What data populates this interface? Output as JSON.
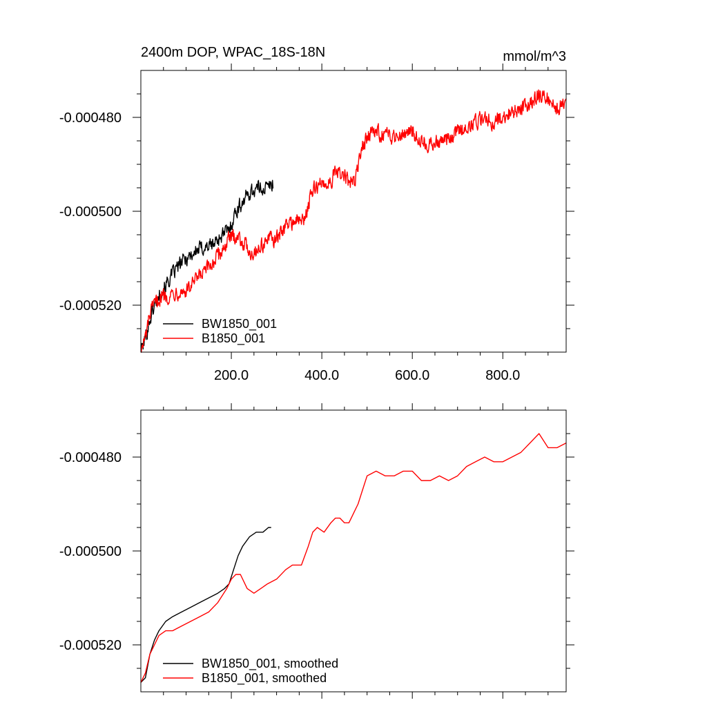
{
  "chart_data": [
    {
      "type": "line",
      "title": "2400m DOP, WPAC_18S-18N",
      "units": "mmol/m^3",
      "xlim": [
        0,
        940
      ],
      "ylim": [
        -0.00053,
        -0.00047
      ],
      "x_ticks": [
        {
          "value": 200,
          "label": "200.0"
        },
        {
          "value": 400,
          "label": "400.0"
        },
        {
          "value": 600,
          "label": "600.0"
        },
        {
          "value": 800,
          "label": "800.0"
        }
      ],
      "y_ticks": [
        {
          "value": -0.00048,
          "label": "-0.000480"
        },
        {
          "value": -0.0005,
          "label": "-0.000500"
        },
        {
          "value": -0.00052,
          "label": "-0.000520"
        }
      ],
      "legend_position": "bottom-left",
      "series": [
        {
          "name": "BW1850_001",
          "color": "#000000",
          "noise": 2.3e-06,
          "points": [
            [
              0,
              -0.00053
            ],
            [
              10,
              -0.000527
            ],
            [
              20,
              -0.000523
            ],
            [
              30,
              -0.00052
            ],
            [
              45,
              -0.000517
            ],
            [
              60,
              -0.000515
            ],
            [
              80,
              -0.000512
            ],
            [
              100,
              -0.00051
            ],
            [
              130,
              -0.000508
            ],
            [
              160,
              -0.000507
            ],
            [
              180,
              -0.000505
            ],
            [
              195,
              -0.000504
            ],
            [
              210,
              -0.0005
            ],
            [
              225,
              -0.000498
            ],
            [
              240,
              -0.000496
            ],
            [
              260,
              -0.000495
            ],
            [
              280,
              -0.000495
            ],
            [
              292,
              -0.000494
            ]
          ]
        },
        {
          "name": "B1850_001",
          "color": "#ff0000",
          "noise": 2.3e-06,
          "points": [
            [
              0,
              -0.00053
            ],
            [
              10,
              -0.000527
            ],
            [
              20,
              -0.000522
            ],
            [
              30,
              -0.00052
            ],
            [
              45,
              -0.000518
            ],
            [
              60,
              -0.000518
            ],
            [
              80,
              -0.000517
            ],
            [
              100,
              -0.000517
            ],
            [
              120,
              -0.000515
            ],
            [
              150,
              -0.000512
            ],
            [
              175,
              -0.000509
            ],
            [
              195,
              -0.000506
            ],
            [
              210,
              -0.000505
            ],
            [
              230,
              -0.000507
            ],
            [
              245,
              -0.000509
            ],
            [
              260,
              -0.000508
            ],
            [
              280,
              -0.000506
            ],
            [
              300,
              -0.000506
            ],
            [
              320,
              -0.000503
            ],
            [
              340,
              -0.000502
            ],
            [
              360,
              -0.000502
            ],
            [
              375,
              -0.000497
            ],
            [
              385,
              -0.000495
            ],
            [
              400,
              -0.000494
            ],
            [
              415,
              -0.000494
            ],
            [
              430,
              -0.000492
            ],
            [
              445,
              -0.000492
            ],
            [
              460,
              -0.000494
            ],
            [
              475,
              -0.000493
            ],
            [
              490,
              -0.000486
            ],
            [
              500,
              -0.000484
            ],
            [
              520,
              -0.000483
            ],
            [
              540,
              -0.000484
            ],
            [
              560,
              -0.000484
            ],
            [
              580,
              -0.000483
            ],
            [
              600,
              -0.000483
            ],
            [
              620,
              -0.000485
            ],
            [
              640,
              -0.000486
            ],
            [
              660,
              -0.000485
            ],
            [
              680,
              -0.000485
            ],
            [
              700,
              -0.000483
            ],
            [
              720,
              -0.000482
            ],
            [
              740,
              -0.000481
            ],
            [
              760,
              -0.00048
            ],
            [
              780,
              -0.000481
            ],
            [
              800,
              -0.00048
            ],
            [
              820,
              -0.000479
            ],
            [
              840,
              -0.000478
            ],
            [
              860,
              -0.000477
            ],
            [
              880,
              -0.000475
            ],
            [
              900,
              -0.000476
            ],
            [
              920,
              -0.000478
            ],
            [
              940,
              -0.000477
            ]
          ]
        }
      ]
    },
    {
      "type": "line",
      "xlim": [
        0,
        940
      ],
      "ylim": [
        -0.00053,
        -0.00047
      ],
      "x_ticks": [
        {
          "value": 200
        },
        {
          "value": 400
        },
        {
          "value": 600
        },
        {
          "value": 800
        }
      ],
      "y_ticks": [
        {
          "value": -0.00048,
          "label": "-0.000480"
        },
        {
          "value": -0.0005,
          "label": "-0.000500"
        },
        {
          "value": -0.00052,
          "label": "-0.000520"
        }
      ],
      "legend_position": "bottom-left",
      "series": [
        {
          "name": "BW1850_001, smoothed",
          "color": "#000000",
          "points": [
            [
              0,
              -0.000528
            ],
            [
              10,
              -0.000527
            ],
            [
              20,
              -0.000522
            ],
            [
              30,
              -0.000519
            ],
            [
              40,
              -0.000517
            ],
            [
              55,
              -0.000515
            ],
            [
              70,
              -0.000514
            ],
            [
              90,
              -0.000513
            ],
            [
              110,
              -0.000512
            ],
            [
              130,
              -0.000511
            ],
            [
              150,
              -0.00051
            ],
            [
              170,
              -0.000509
            ],
            [
              185,
              -0.000508
            ],
            [
              195,
              -0.000507
            ],
            [
              205,
              -0.000504
            ],
            [
              215,
              -0.000501
            ],
            [
              225,
              -0.000499
            ],
            [
              240,
              -0.000497
            ],
            [
              255,
              -0.000496
            ],
            [
              270,
              -0.000496
            ],
            [
              282,
              -0.000495
            ],
            [
              288,
              -0.000495
            ]
          ]
        },
        {
          "name": "B1850_001, smoothed",
          "color": "#ff0000",
          "points": [
            [
              0,
              -0.000528
            ],
            [
              10,
              -0.000526
            ],
            [
              20,
              -0.000522
            ],
            [
              30,
              -0.00052
            ],
            [
              40,
              -0.000518
            ],
            [
              55,
              -0.000517
            ],
            [
              70,
              -0.000517
            ],
            [
              90,
              -0.000516
            ],
            [
              110,
              -0.000515
            ],
            [
              130,
              -0.000514
            ],
            [
              150,
              -0.000513
            ],
            [
              170,
              -0.000511
            ],
            [
              190,
              -0.000508
            ],
            [
              200,
              -0.000506
            ],
            [
              210,
              -0.000505
            ],
            [
              220,
              -0.000505
            ],
            [
              235,
              -0.000508
            ],
            [
              250,
              -0.000509
            ],
            [
              265,
              -0.000508
            ],
            [
              280,
              -0.000507
            ],
            [
              300,
              -0.000506
            ],
            [
              320,
              -0.000504
            ],
            [
              335,
              -0.000503
            ],
            [
              345,
              -0.000503
            ],
            [
              355,
              -0.000503
            ],
            [
              370,
              -0.000499
            ],
            [
              380,
              -0.000496
            ],
            [
              390,
              -0.000495
            ],
            [
              405,
              -0.000496
            ],
            [
              420,
              -0.000494
            ],
            [
              430,
              -0.000493
            ],
            [
              440,
              -0.000493
            ],
            [
              450,
              -0.000494
            ],
            [
              460,
              -0.000494
            ],
            [
              470,
              -0.000492
            ],
            [
              480,
              -0.00049
            ],
            [
              490,
              -0.000487
            ],
            [
              500,
              -0.000484
            ],
            [
              520,
              -0.000483
            ],
            [
              540,
              -0.000484
            ],
            [
              560,
              -0.000484
            ],
            [
              580,
              -0.000483
            ],
            [
              600,
              -0.000483
            ],
            [
              620,
              -0.000485
            ],
            [
              640,
              -0.000485
            ],
            [
              660,
              -0.000484
            ],
            [
              680,
              -0.000485
            ],
            [
              700,
              -0.000484
            ],
            [
              720,
              -0.000482
            ],
            [
              740,
              -0.000481
            ],
            [
              760,
              -0.00048
            ],
            [
              780,
              -0.000481
            ],
            [
              800,
              -0.000481
            ],
            [
              820,
              -0.00048
            ],
            [
              840,
              -0.000479
            ],
            [
              860,
              -0.000477
            ],
            [
              880,
              -0.000475
            ],
            [
              900,
              -0.000478
            ],
            [
              920,
              -0.000478
            ],
            [
              940,
              -0.000477
            ]
          ]
        }
      ]
    }
  ]
}
